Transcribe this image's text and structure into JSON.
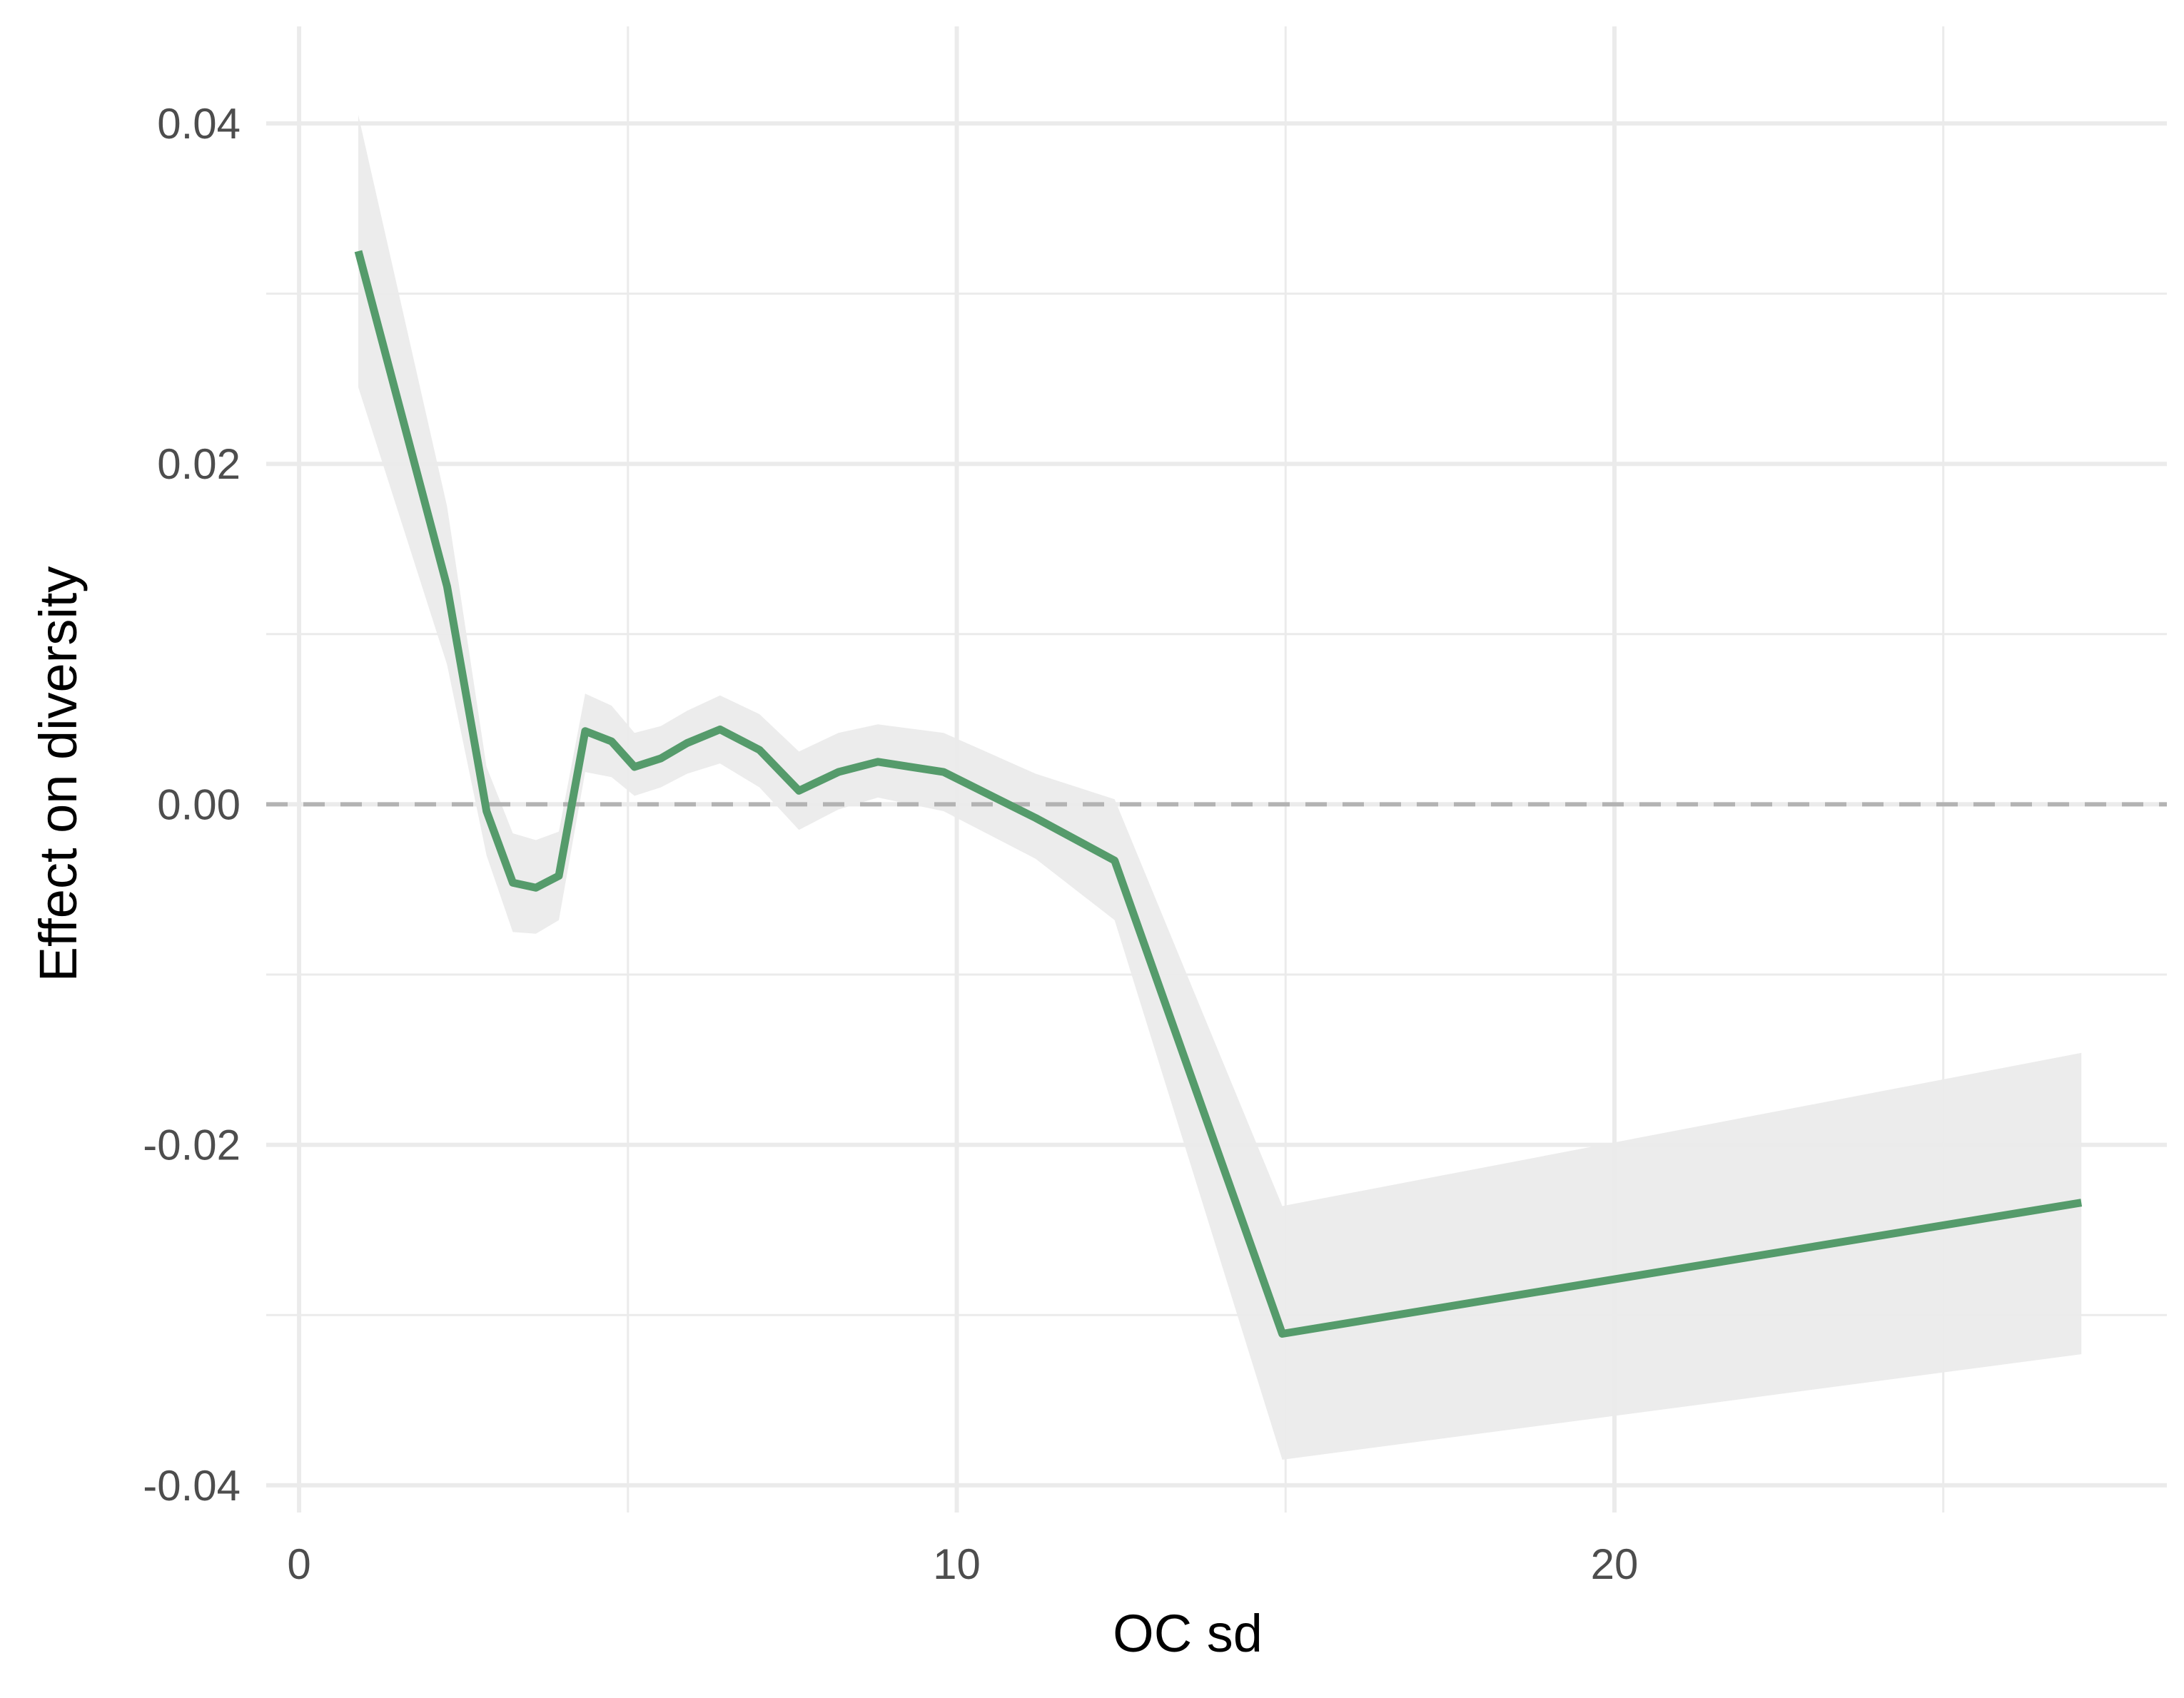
{
  "chart_data": {
    "type": "line",
    "title": "",
    "xlabel": "OC sd",
    "ylabel": "Effect on diversity",
    "xlim": [
      -0.5,
      28.4
    ],
    "ylim": [
      -0.0416,
      0.0457
    ],
    "x_ticks": [
      0,
      10,
      20
    ],
    "x_tick_labels": [
      "0",
      "10",
      "20"
    ],
    "x_minor_ticks": [
      5,
      15,
      25
    ],
    "y_ticks": [
      -0.04,
      -0.02,
      0.0,
      0.02,
      0.04
    ],
    "y_tick_labels": [
      "-0.04",
      "-0.02",
      "0.00",
      "0.02",
      "0.04"
    ],
    "y_minor_ticks": [
      -0.03,
      -0.01,
      0.01,
      0.03
    ],
    "grid": true,
    "reference_line": {
      "y": 0,
      "style": "dashed",
      "color": "#b3b3b3"
    },
    "colors": {
      "line": "#559b6b",
      "band": "#ebebeb",
      "grid": "#ebebeb"
    },
    "series": [
      {
        "x": [
          0.9,
          2.25,
          2.85,
          3.25,
          3.6,
          3.95,
          4.35,
          4.75,
          5.1,
          5.5,
          5.9,
          6.4,
          7.0,
          7.6,
          8.2,
          8.8,
          9.8,
          11.2,
          12.4,
          14.95,
          27.1
        ],
        "y": [
          0.0325,
          0.0128,
          -0.0004,
          -0.0046,
          -0.0049,
          -0.0042,
          0.0043,
          0.0037,
          0.0022,
          0.0027,
          0.0036,
          0.0044,
          0.0032,
          0.0008,
          0.0019,
          0.0025,
          0.0019,
          -0.0008,
          -0.0033,
          -0.0311,
          -0.0234
        ],
        "lower": [
          0.0245,
          0.0082,
          -0.003,
          -0.0075,
          -0.0076,
          -0.0068,
          0.0019,
          0.0016,
          0.0005,
          0.001,
          0.0018,
          0.0024,
          0.001,
          -0.0015,
          -0.0003,
          0.0004,
          -0.0004,
          -0.0032,
          -0.0068,
          -0.0385,
          -0.0323
        ],
        "upper": [
          0.0405,
          0.0175,
          0.0022,
          -0.0017,
          -0.0021,
          -0.0016,
          0.0065,
          0.0058,
          0.0042,
          0.0046,
          0.0055,
          0.0064,
          0.0053,
          0.0031,
          0.0042,
          0.0047,
          0.0042,
          0.0018,
          0.0003,
          -0.0236,
          -0.0146
        ]
      }
    ]
  }
}
